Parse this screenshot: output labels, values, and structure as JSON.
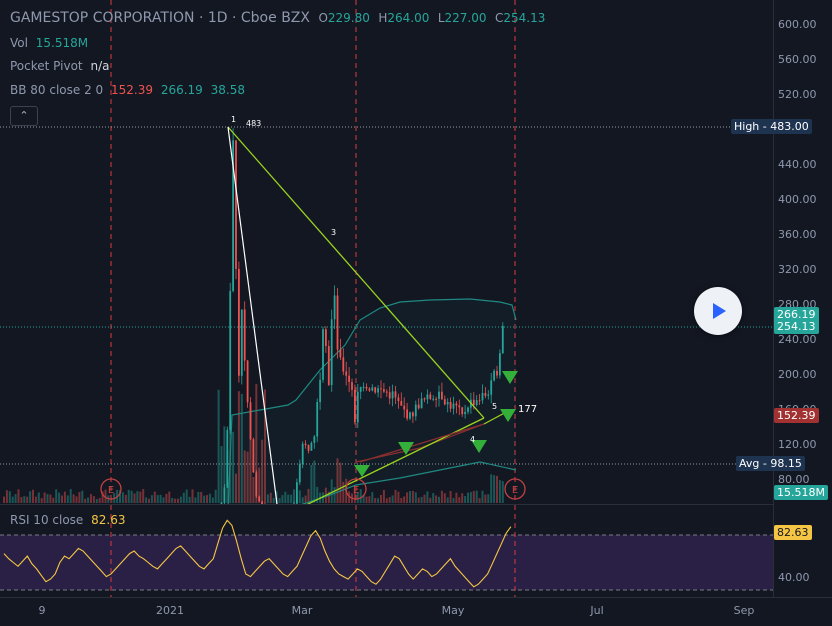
{
  "header": {
    "title": "GAMESTOP CORPORATION · 1D · Cboe BZX",
    "ohlc": [
      {
        "k": "O",
        "v": "229.80"
      },
      {
        "k": "H",
        "v": "264.00"
      },
      {
        "k": "L",
        "v": "227.00"
      },
      {
        "k": "C",
        "v": "254.13"
      }
    ]
  },
  "indicators": {
    "vol": {
      "label": "Vol",
      "value": "15.518M"
    },
    "pocket_pivot": {
      "label": "Pocket Pivot",
      "value": "n/a"
    },
    "bb": {
      "label": "BB 80 close 2 0",
      "basis": "152.39",
      "upper": "266.19",
      "lower": "38.58"
    },
    "rsi": {
      "label": "RSI 10 close",
      "value": "82.63"
    }
  },
  "colors": {
    "background": "#131722",
    "up": "#26a69a",
    "down": "#ef5350",
    "trendline": "#9bd41e",
    "bb_line": "#1f8a82",
    "rsi_line": "#f5c644",
    "rsi_fill": "#2a2045",
    "marker_green": "#34b03a"
  },
  "axis": {
    "price_ticks": [
      "600.00",
      "560.00",
      "520.00",
      "440.00",
      "400.00",
      "360.00",
      "320.00",
      "280.00",
      "240.00",
      "200.00",
      "160.00",
      "120.00",
      "80.00"
    ],
    "rsi_ticks": [
      "40.00"
    ],
    "time_ticks": [
      "9",
      "2021",
      "Mar",
      "May",
      "Jul",
      "Sep"
    ]
  },
  "price_tags": {
    "high": {
      "label": "High",
      "value": "483.00"
    },
    "upper_band": "266.19",
    "last": "254.13",
    "basis": "152.39",
    "avg": {
      "label": "Avg",
      "value": "98.15"
    },
    "volume": "15.518M",
    "rsi": "82.63"
  },
  "annotations": {
    "point1": "1",
    "point1_value": "483",
    "point3": "3",
    "point4": "4",
    "point5": "5",
    "point5_value": "177"
  },
  "earnings_marker": "E",
  "icons": {
    "collapse": "chevron-up-icon",
    "play": "play-icon",
    "marker": "triangle-down-icon",
    "earnings": "earnings-icon"
  },
  "chart_data": {
    "type": "candlestick",
    "price_range": [
      60,
      615
    ],
    "rsi_range": [
      28,
      100
    ],
    "bollinger": {
      "period": 80,
      "upper": 266.19,
      "basis": 152.39,
      "lower": 38.58
    },
    "high": 483.0,
    "avg_volume_line": 98.15,
    "last_close": 254.13
  }
}
